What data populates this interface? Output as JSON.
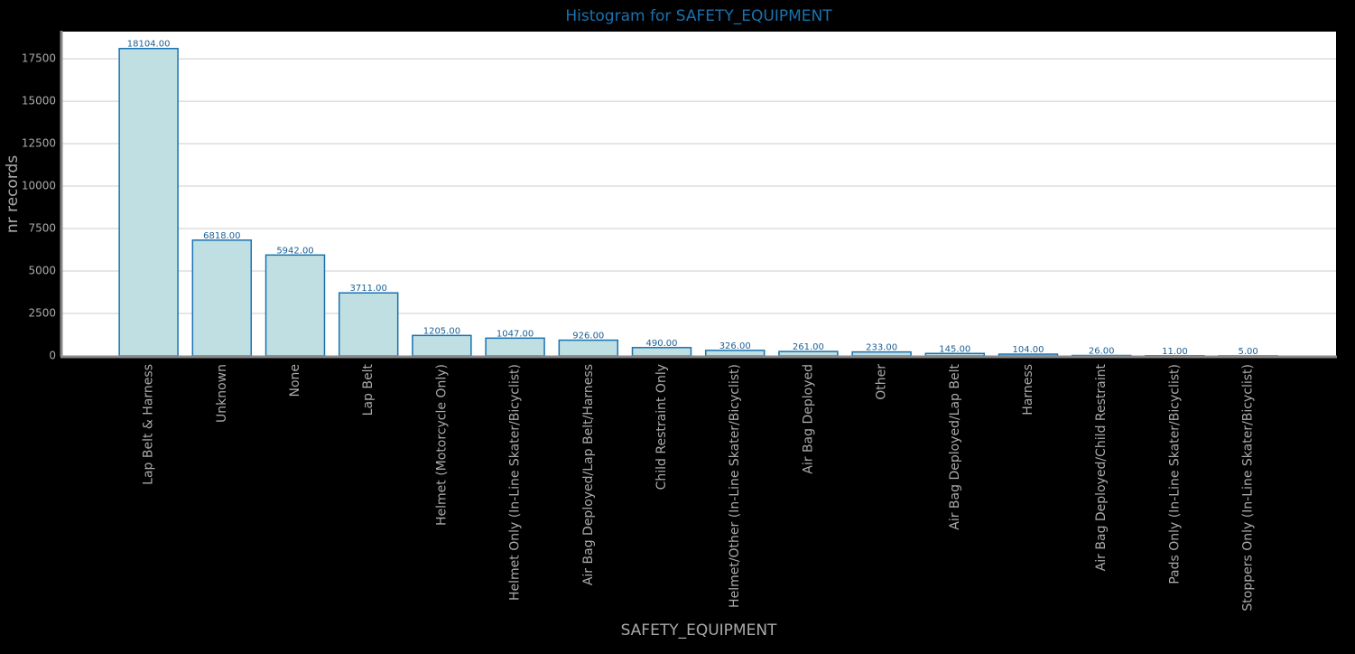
{
  "chart_data": {
    "type": "bar",
    "title": "Histogram for SAFETY_EQUIPMENT",
    "x_label": "SAFETY_EQUIPMENT",
    "y_label": "nr records",
    "categories": [
      "Lap Belt & Harness",
      "Unknown",
      "None",
      "Lap Belt",
      "Helmet (Motorcycle Only)",
      "Helmet Only (In-Line Skater/Bicyclist)",
      "Air Bag Deployed/Lap Belt/Harness",
      "Child Restraint Only",
      "Helmet/Other (In-Line Skater/Bicyclist)",
      "Air Bag Deployed",
      "Other",
      "Air Bag Deployed/Lap Belt",
      "Harness",
      "Air Bag Deployed/Child Restraint",
      "Pads Only (In-Line Skater/Bicyclist)",
      "Stoppers Only (In-Line Skater/Bicyclist)"
    ],
    "values": [
      18104,
      6818,
      5942,
      3711,
      1205,
      1047,
      926,
      490,
      326,
      261,
      233,
      145,
      104,
      26,
      11,
      5
    ],
    "value_labels": [
      "18104.00",
      "6818.00",
      "5942.00",
      "3711.00",
      "1205.00",
      "1047.00",
      "926.00",
      "490.00",
      "326.00",
      "261.00",
      "233.00",
      "145.00",
      "104.00",
      "26.00",
      "11.00",
      "5.00"
    ],
    "color": "#bfdfe3",
    "edge_color": "#1a72b0",
    "ylim": [
      0,
      19100
    ],
    "yticks": [
      0,
      2500,
      5000,
      7500,
      10000,
      12500,
      15000,
      17500
    ],
    "grid": true
  }
}
